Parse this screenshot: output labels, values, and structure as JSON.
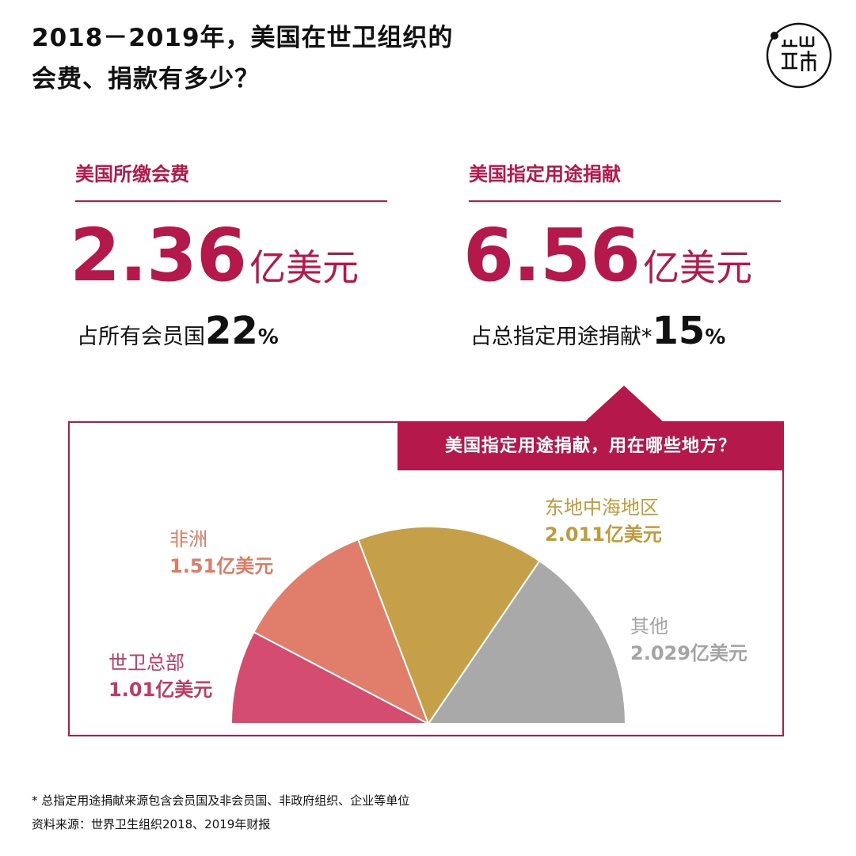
{
  "title": {
    "line1": "2018－2019年，美国在世卫组织的",
    "line2": "会费、捐款有多少？"
  },
  "logo_icon": "端-logo-circle-icon",
  "dues": {
    "heading": "美国所缴会费",
    "amount": "2.36",
    "unit": "亿美元",
    "share_label": "占所有会员国",
    "share_value": "22",
    "share_sign": "%"
  },
  "earmarked": {
    "heading": "美国指定用途捐献",
    "amount": "6.56",
    "unit": "亿美元",
    "share_label": "占总指定用途捐献*",
    "share_value": "15",
    "share_sign": "%"
  },
  "banner": "美国指定用途捐献，用在哪些地方？",
  "chart_data": {
    "type": "pie",
    "style": "semicircle",
    "unit": "亿美元",
    "slices": [
      {
        "name": "世卫总部",
        "value": 1.01,
        "label": "1.01亿美元",
        "color": "#d44c70"
      },
      {
        "name": "非洲",
        "value": 1.51,
        "label": "1.51亿美元",
        "color": "#e07e6b"
      },
      {
        "name": "东地中海地区",
        "value": 2.011,
        "label": "2.011亿美元",
        "color": "#c6a048"
      },
      {
        "name": "其他",
        "value": 2.029,
        "label": "2.029亿美元",
        "color": "#a9a9a9"
      }
    ],
    "label_colors": [
      "#c23a64",
      "#de7b67",
      "#c29a3a",
      "#a4a4a4"
    ]
  },
  "footnote": "* 总指定用途捐献来源包含会员国及非会员国、非政府组织、企业等单位",
  "source": "资料来源：世界卫生组织2018、2019年财报",
  "colors": {
    "accent": "#b5184a"
  }
}
